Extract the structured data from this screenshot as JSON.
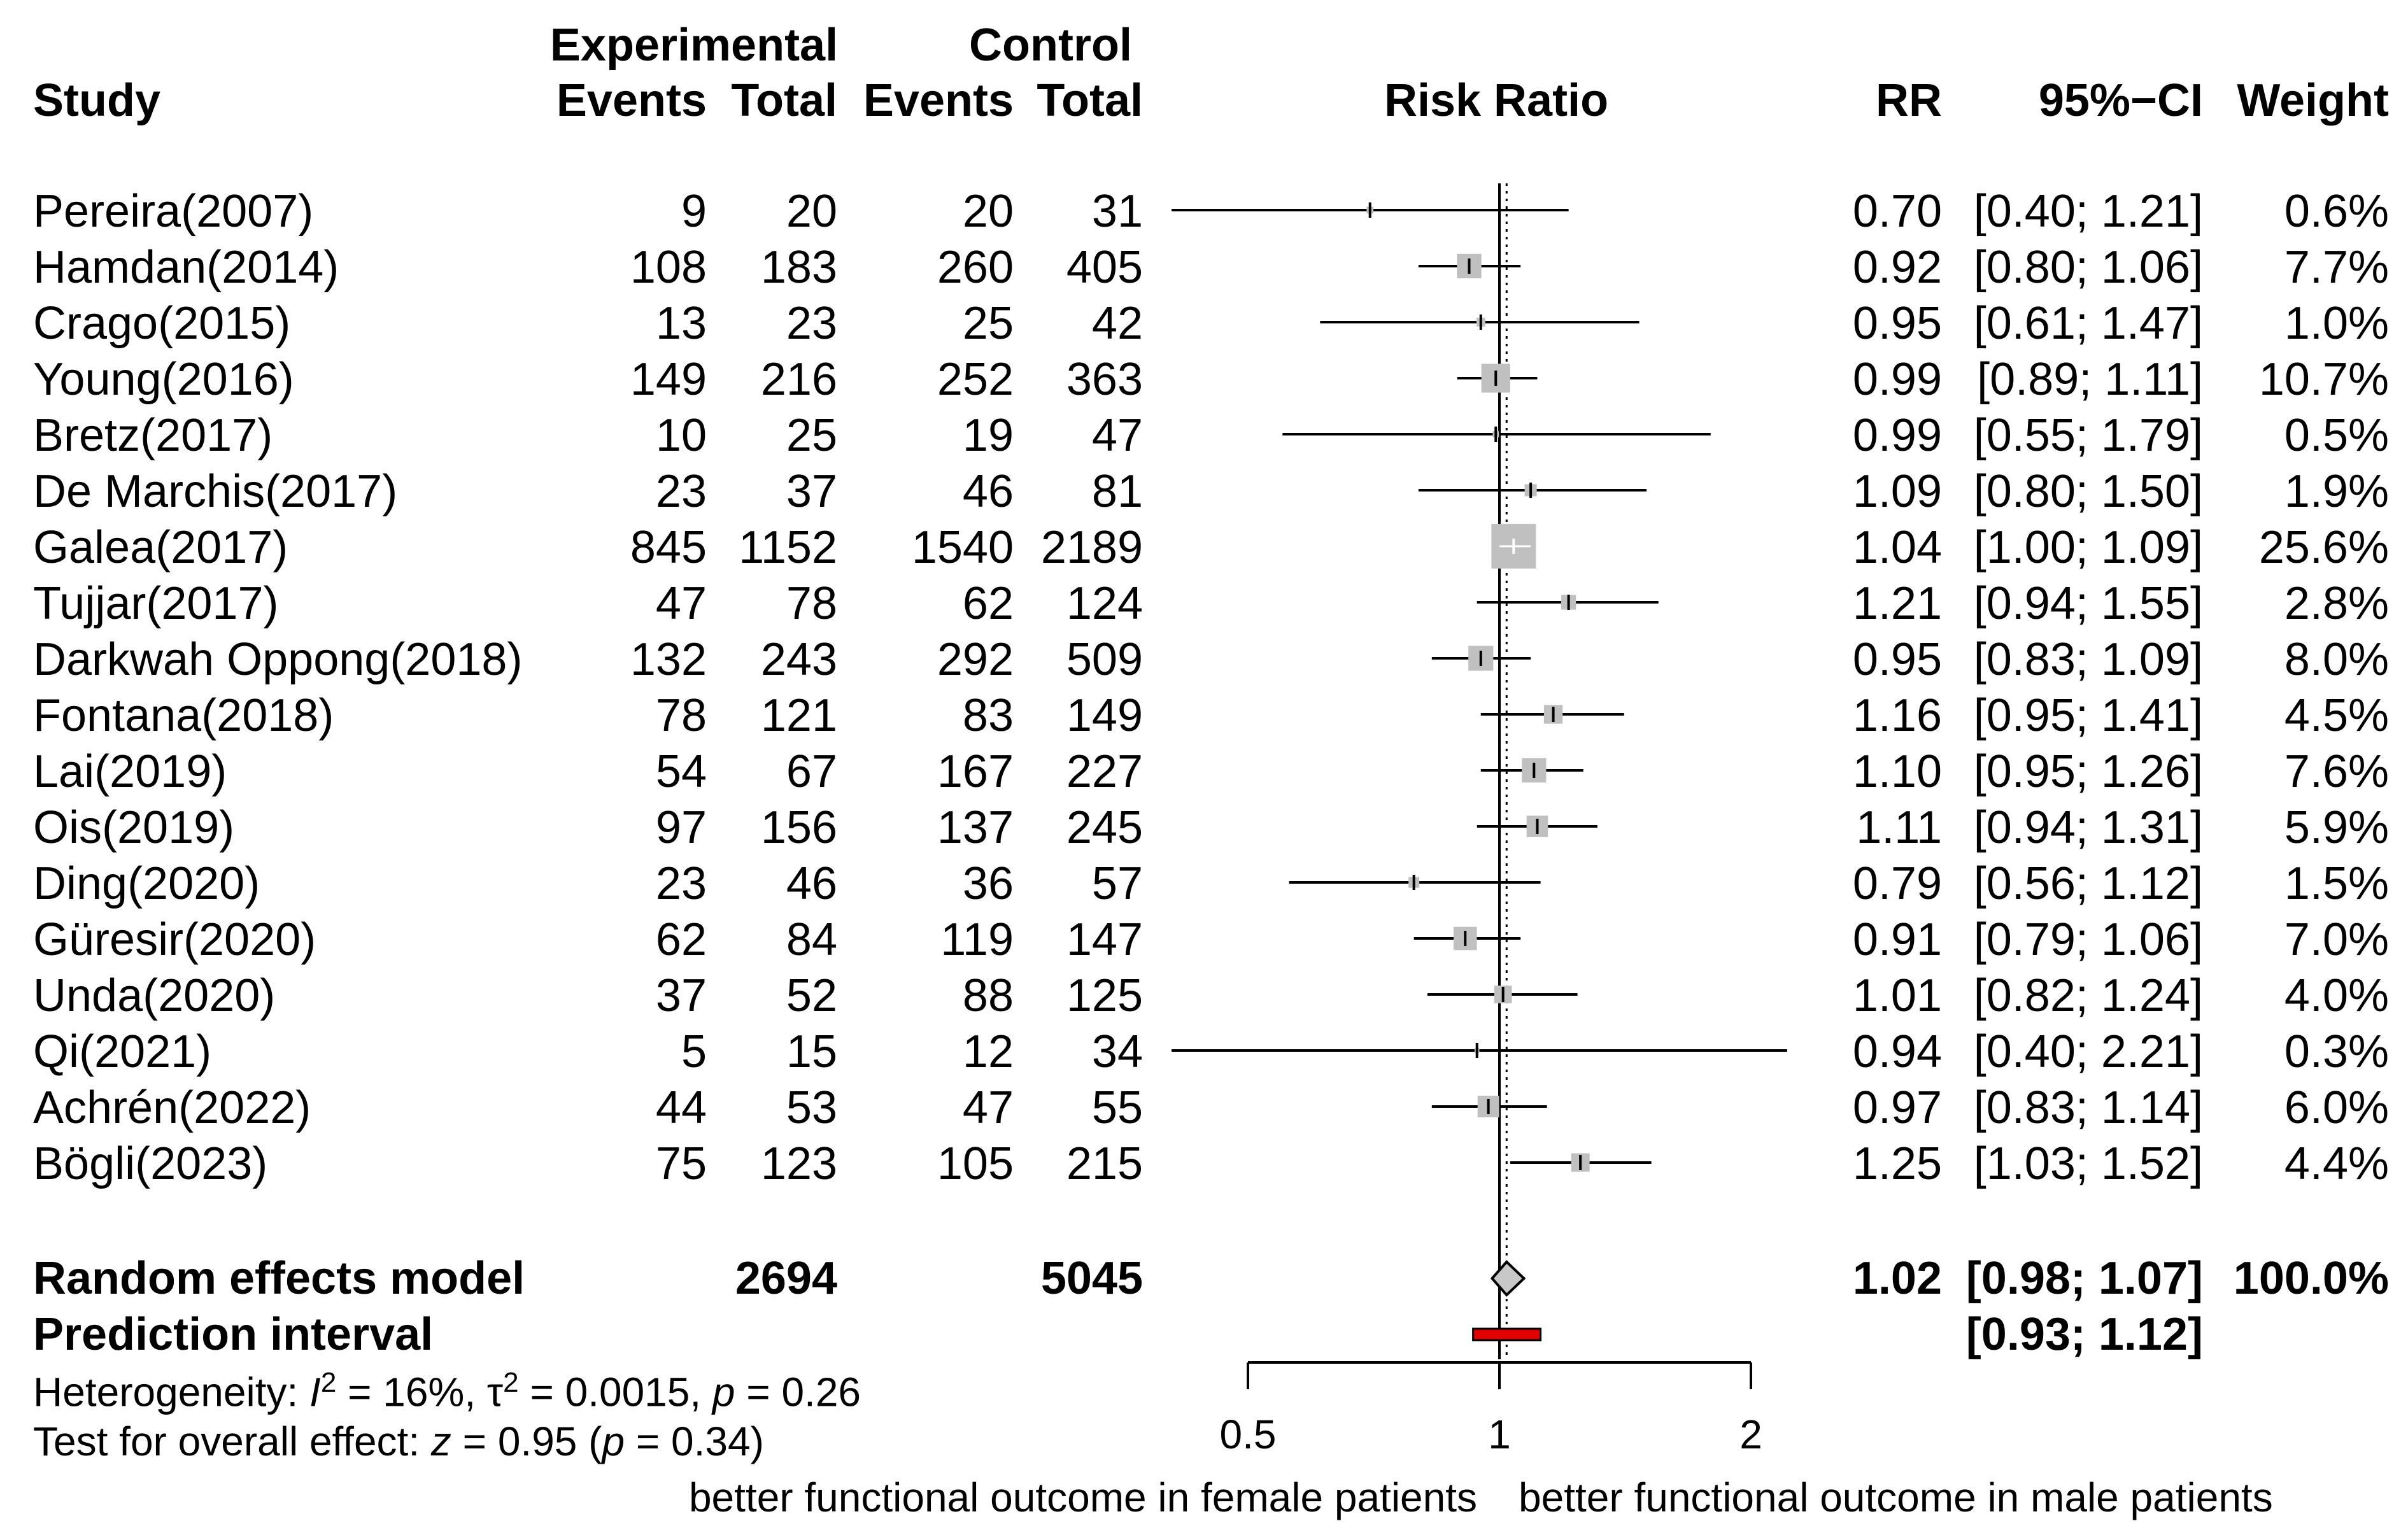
{
  "headers": {
    "study": "Study",
    "experimental": "Experimental",
    "control": "Control",
    "events": "Events",
    "total": "Total",
    "risk_ratio": "Risk Ratio",
    "rr": "RR",
    "ci": "95%−CI",
    "weight": "Weight"
  },
  "studies": [
    {
      "name": "Pereira(2007)",
      "exp_events": "9",
      "exp_total": "20",
      "ctl_events": "20",
      "ctl_total": "31",
      "rr": "0.70",
      "ci": "[0.40; 1.21]",
      "weight": "0.6%"
    },
    {
      "name": "Hamdan(2014)",
      "exp_events": "108",
      "exp_total": "183",
      "ctl_events": "260",
      "ctl_total": "405",
      "rr": "0.92",
      "ci": "[0.80; 1.06]",
      "weight": "7.7%"
    },
    {
      "name": "Crago(2015)",
      "exp_events": "13",
      "exp_total": "23",
      "ctl_events": "25",
      "ctl_total": "42",
      "rr": "0.95",
      "ci": "[0.61; 1.47]",
      "weight": "1.0%"
    },
    {
      "name": "Young(2016)",
      "exp_events": "149",
      "exp_total": "216",
      "ctl_events": "252",
      "ctl_total": "363",
      "rr": "0.99",
      "ci": "[0.89; 1.11]",
      "weight": "10.7%"
    },
    {
      "name": "Bretz(2017)",
      "exp_events": "10",
      "exp_total": "25",
      "ctl_events": "19",
      "ctl_total": "47",
      "rr": "0.99",
      "ci": "[0.55; 1.79]",
      "weight": "0.5%"
    },
    {
      "name": "De Marchis(2017)",
      "exp_events": "23",
      "exp_total": "37",
      "ctl_events": "46",
      "ctl_total": "81",
      "rr": "1.09",
      "ci": "[0.80; 1.50]",
      "weight": "1.9%"
    },
    {
      "name": "Galea(2017)",
      "exp_events": "845",
      "exp_total": "1152",
      "ctl_events": "1540",
      "ctl_total": "2189",
      "rr": "1.04",
      "ci": "[1.00; 1.09]",
      "weight": "25.6%"
    },
    {
      "name": "Tujjar(2017)",
      "exp_events": "47",
      "exp_total": "78",
      "ctl_events": "62",
      "ctl_total": "124",
      "rr": "1.21",
      "ci": "[0.94; 1.55]",
      "weight": "2.8%"
    },
    {
      "name": "Darkwah Oppong(2018)",
      "exp_events": "132",
      "exp_total": "243",
      "ctl_events": "292",
      "ctl_total": "509",
      "rr": "0.95",
      "ci": "[0.83; 1.09]",
      "weight": "8.0%"
    },
    {
      "name": "Fontana(2018)",
      "exp_events": "78",
      "exp_total": "121",
      "ctl_events": "83",
      "ctl_total": "149",
      "rr": "1.16",
      "ci": "[0.95; 1.41]",
      "weight": "4.5%"
    },
    {
      "name": "Lai(2019)",
      "exp_events": "54",
      "exp_total": "67",
      "ctl_events": "167",
      "ctl_total": "227",
      "rr": "1.10",
      "ci": "[0.95; 1.26]",
      "weight": "7.6%"
    },
    {
      "name": "Ois(2019)",
      "exp_events": "97",
      "exp_total": "156",
      "ctl_events": "137",
      "ctl_total": "245",
      "rr": "1.11",
      "ci": "[0.94; 1.31]",
      "weight": "5.9%"
    },
    {
      "name": "Ding(2020)",
      "exp_events": "23",
      "exp_total": "46",
      "ctl_events": "36",
      "ctl_total": "57",
      "rr": "0.79",
      "ci": "[0.56; 1.12]",
      "weight": "1.5%"
    },
    {
      "name": "Güresir(2020)",
      "exp_events": "62",
      "exp_total": "84",
      "ctl_events": "119",
      "ctl_total": "147",
      "rr": "0.91",
      "ci": "[0.79; 1.06]",
      "weight": "7.0%"
    },
    {
      "name": "Unda(2020)",
      "exp_events": "37",
      "exp_total": "52",
      "ctl_events": "88",
      "ctl_total": "125",
      "rr": "1.01",
      "ci": "[0.82; 1.24]",
      "weight": "4.0%"
    },
    {
      "name": "Qi(2021)",
      "exp_events": "5",
      "exp_total": "15",
      "ctl_events": "12",
      "ctl_total": "34",
      "rr": "0.94",
      "ci": "[0.40; 2.21]",
      "weight": "0.3%"
    },
    {
      "name": "Achrén(2022)",
      "exp_events": "44",
      "exp_total": "53",
      "ctl_events": "47",
      "ctl_total": "55",
      "rr": "0.97",
      "ci": "[0.83; 1.14]",
      "weight": "6.0%"
    },
    {
      "name": "Bögli(2023)",
      "exp_events": "75",
      "exp_total": "123",
      "ctl_events": "105",
      "ctl_total": "215",
      "rr": "1.25",
      "ci": "[1.03; 1.52]",
      "weight": "4.4%"
    }
  ],
  "summary": {
    "label": "Random effects model",
    "exp_total": "2694",
    "ctl_total": "5045",
    "rr": "1.02",
    "ci": "[0.98; 1.07]",
    "weight": "100.0%"
  },
  "prediction": {
    "label": "Prediction interval",
    "ci": "[0.93; 1.12]"
  },
  "heterogeneity": {
    "prefix": "Heterogeneity: ",
    "i2_symbol": "I",
    "i2_value": " = 16%, ",
    "tau2_symbol": "τ",
    "tau2_value": " = 0.0015, ",
    "p_symbol": "p",
    "p_value": " = 0.26",
    "superscript": "2"
  },
  "overall_effect": {
    "prefix": "Test for overall effect: ",
    "z_symbol": "z",
    "z_value": " = 0.95 (",
    "p_symbol": "p",
    "p_value": " = 0.34)"
  },
  "axis_labels": {
    "left": "better functional outcome in female patients",
    "right": "better functional outcome in male patients"
  },
  "colors": {
    "box_fill": "#c0c0c0",
    "summary_diamond": "#c8c8c8",
    "prediction_bar": "#e00000",
    "line": "#000000"
  },
  "chart_data": {
    "type": "forest",
    "title": "Risk Ratio",
    "x_scale": "log",
    "xlim": [
      0.5,
      2
    ],
    "ticks": [
      0.5,
      1,
      2
    ],
    "tick_labels": [
      "0.5",
      "1",
      "2"
    ],
    "reference_line": 1,
    "summary_line": 1.02,
    "points": [
      {
        "study": "Pereira(2007)",
        "rr": 0.7,
        "lo": 0.4,
        "hi": 1.21,
        "weight": 0.6
      },
      {
        "study": "Hamdan(2014)",
        "rr": 0.92,
        "lo": 0.8,
        "hi": 1.06,
        "weight": 7.7
      },
      {
        "study": "Crago(2015)",
        "rr": 0.95,
        "lo": 0.61,
        "hi": 1.47,
        "weight": 1.0
      },
      {
        "study": "Young(2016)",
        "rr": 0.99,
        "lo": 0.89,
        "hi": 1.11,
        "weight": 10.7
      },
      {
        "study": "Bretz(2017)",
        "rr": 0.99,
        "lo": 0.55,
        "hi": 1.79,
        "weight": 0.5
      },
      {
        "study": "De Marchis(2017)",
        "rr": 1.09,
        "lo": 0.8,
        "hi": 1.5,
        "weight": 1.9
      },
      {
        "study": "Galea(2017)",
        "rr": 1.04,
        "lo": 1.0,
        "hi": 1.09,
        "weight": 25.6
      },
      {
        "study": "Tujjar(2017)",
        "rr": 1.21,
        "lo": 0.94,
        "hi": 1.55,
        "weight": 2.8
      },
      {
        "study": "Darkwah Oppong(2018)",
        "rr": 0.95,
        "lo": 0.83,
        "hi": 1.09,
        "weight": 8.0
      },
      {
        "study": "Fontana(2018)",
        "rr": 1.16,
        "lo": 0.95,
        "hi": 1.41,
        "weight": 4.5
      },
      {
        "study": "Lai(2019)",
        "rr": 1.1,
        "lo": 0.95,
        "hi": 1.26,
        "weight": 7.6
      },
      {
        "study": "Ois(2019)",
        "rr": 1.11,
        "lo": 0.94,
        "hi": 1.31,
        "weight": 5.9
      },
      {
        "study": "Ding(2020)",
        "rr": 0.79,
        "lo": 0.56,
        "hi": 1.12,
        "weight": 1.5
      },
      {
        "study": "Güresir(2020)",
        "rr": 0.91,
        "lo": 0.79,
        "hi": 1.06,
        "weight": 7.0
      },
      {
        "study": "Unda(2020)",
        "rr": 1.01,
        "lo": 0.82,
        "hi": 1.24,
        "weight": 4.0
      },
      {
        "study": "Qi(2021)",
        "rr": 0.94,
        "lo": 0.4,
        "hi": 2.21,
        "weight": 0.3
      },
      {
        "study": "Achrén(2022)",
        "rr": 0.97,
        "lo": 0.83,
        "hi": 1.14,
        "weight": 6.0
      },
      {
        "study": "Bögli(2023)",
        "rr": 1.25,
        "lo": 1.03,
        "hi": 1.52,
        "weight": 4.4
      }
    ],
    "summary": {
      "rr": 1.02,
      "lo": 0.98,
      "hi": 1.07
    },
    "prediction_interval": {
      "lo": 0.93,
      "hi": 1.12
    }
  }
}
